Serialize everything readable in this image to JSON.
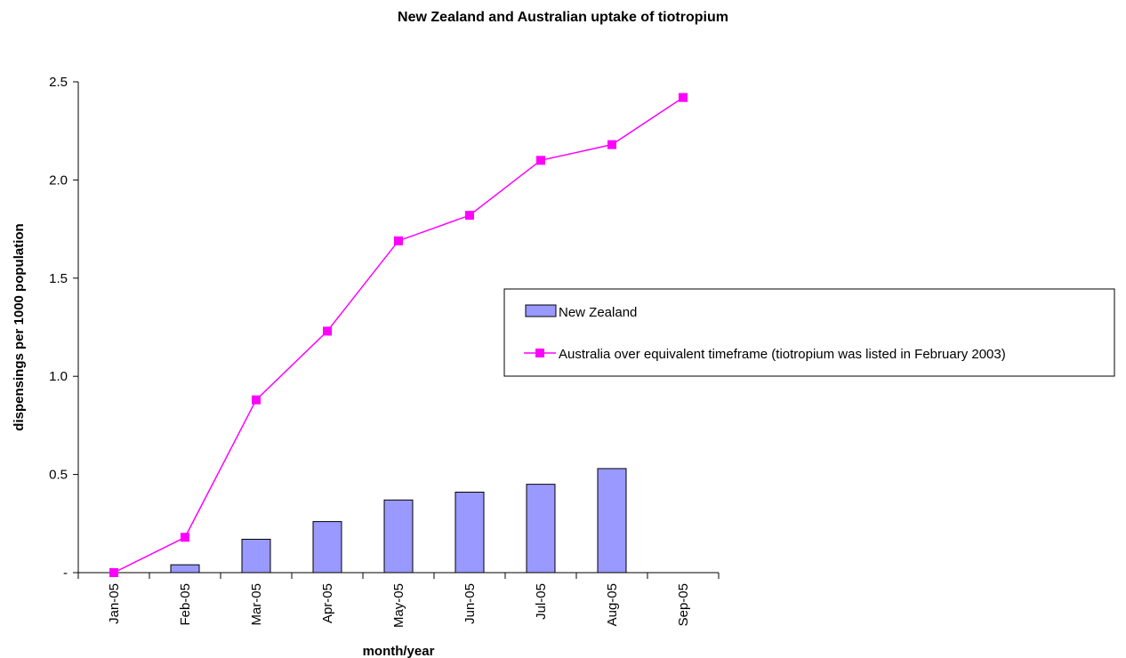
{
  "chart_data": {
    "type": "bar",
    "title": "New Zealand and Australian uptake of tiotropium",
    "xlabel": "month/year",
    "ylabel": "dispensings per 1000 population",
    "categories": [
      "Jan-05",
      "Feb-05",
      "Mar-05",
      "Apr-05",
      "May-05",
      "Jun-05",
      "Jul-05",
      "Aug-05",
      "Sep-05"
    ],
    "ylim": [
      0,
      2.5
    ],
    "yticks": [
      0,
      0.5,
      1.0,
      1.5,
      2.0,
      2.5
    ],
    "ytick_labels": [
      "-",
      "0.5",
      "1.0",
      "1.5",
      "2.0",
      "2.5"
    ],
    "grid": false,
    "legend_position": "right",
    "series": [
      {
        "name": "New Zealand",
        "type": "bar",
        "color": "#9999ff",
        "values": [
          0,
          0.04,
          0.17,
          0.26,
          0.37,
          0.41,
          0.45,
          0.53,
          null
        ]
      },
      {
        "name": "Australia over equivalent timeframe (tiotropium was listed in February 2003)",
        "type": "line",
        "color": "#ff00ff",
        "marker": "square",
        "values": [
          0,
          0.18,
          0.88,
          1.23,
          1.69,
          1.82,
          2.1,
          2.18,
          2.42
        ]
      }
    ]
  }
}
